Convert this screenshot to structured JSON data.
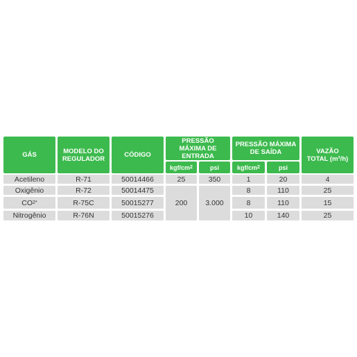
{
  "colors": {
    "header_bg": "#3dba4e",
    "header_text": "#ffffff",
    "row_bg": "#dcdcdc",
    "row_text": "#333333"
  },
  "headers": {
    "gas": "GÁS",
    "modelo": "MODELO DO REGULADOR",
    "codigo": "CÓDIGO",
    "pressao_entrada": "PRESSÃO MÁXIMA DE ENTRADA",
    "pressao_saida": "PRESSÃO MÁXIMA DE SAÍDA",
    "vazao": "VAZÃO TOTAL (m³/h)"
  },
  "subheaders": {
    "entrada_kgf_base": "kgf/cm",
    "entrada_kgf_exp": "2",
    "entrada_psi": "psi",
    "saida_kgf_base": "kgf/cm",
    "saida_kgf_exp": "2",
    "saida_psi": "psi"
  },
  "rows": [
    {
      "gas": "Acetileno",
      "modelo": "R-71",
      "codigo": "50014466",
      "saida_kgf": "1",
      "saida_psi": "20",
      "vazao": "4"
    },
    {
      "gas": "Oxigênio",
      "modelo": "R-72",
      "codigo": "50014475",
      "saida_kgf": "8",
      "saida_psi": "110",
      "vazao": "25"
    },
    {
      "gas_base": "CO",
      "gas_sub": "2",
      "gas_sup": "*",
      "modelo": "R-75C",
      "codigo": "50015277",
      "saida_kgf": "8",
      "saida_psi": "110",
      "vazao": "15"
    },
    {
      "gas": "Nitrogênio",
      "modelo": "R-76N",
      "codigo": "50015276",
      "saida_kgf": "10",
      "saida_psi": "140",
      "vazao": "25"
    }
  ],
  "entrada_merged": {
    "row1_kgf": "25",
    "row1_psi": "350",
    "rows234_kgf": "200",
    "rows234_psi": "3.000"
  }
}
